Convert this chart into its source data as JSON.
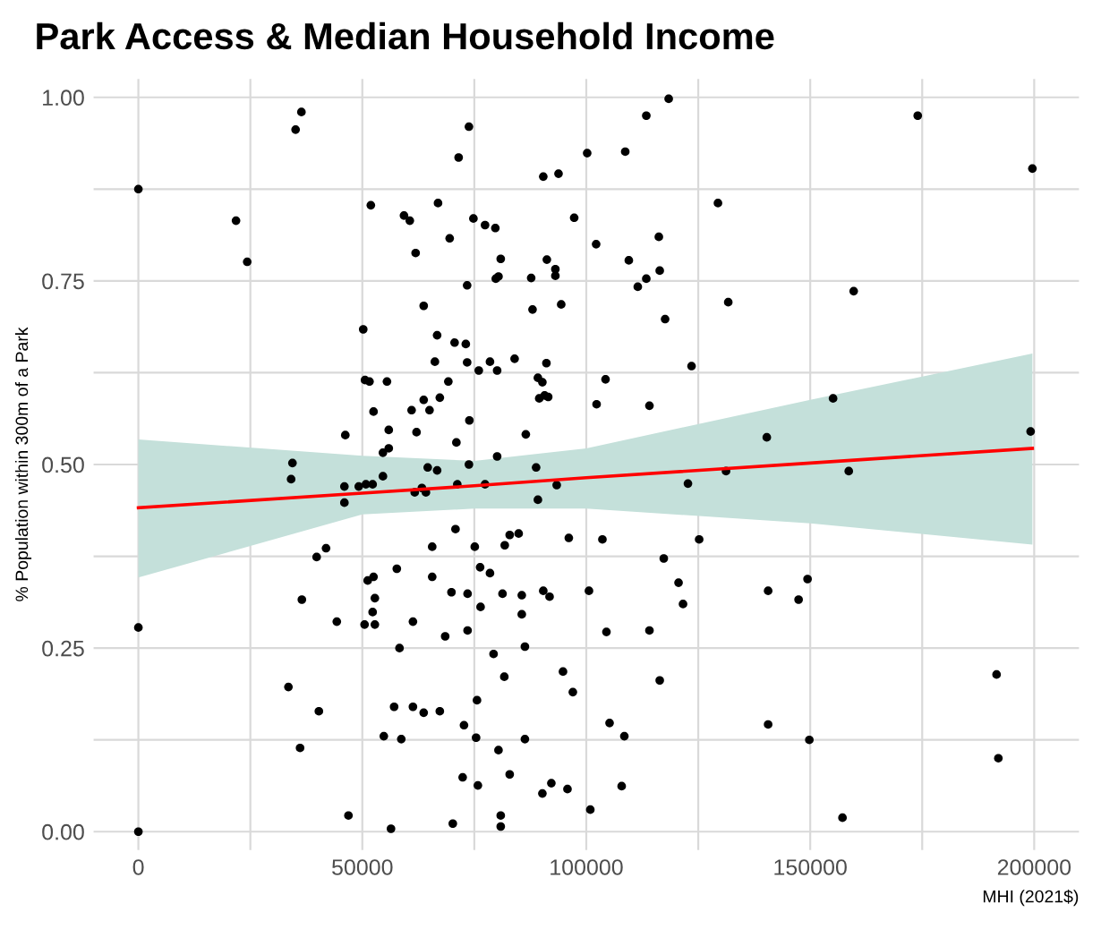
{
  "chart_data": {
    "type": "scatter",
    "title": "Park Access & Median Household Income",
    "xlabel": "MHI (2021$)",
    "ylabel": "% Population within 300m of a Park",
    "xlim": [
      -10000,
      210000
    ],
    "ylim": [
      -0.025,
      1.025
    ],
    "xticks": [
      0,
      {
        "value": 25000,
        "label": null
      },
      50000,
      {
        "value": 75000,
        "label": null
      },
      100000,
      {
        "value": 125000,
        "label": null
      },
      150000,
      {
        "value": 175000,
        "label": null
      },
      200000
    ],
    "yticks": [
      {
        "value": 0,
        "label": "0.00"
      },
      {
        "value": 0.125,
        "label": null
      },
      {
        "value": 0.25,
        "label": "0.25"
      },
      {
        "value": 0.375,
        "label": null
      },
      {
        "value": 0.5,
        "label": "0.50"
      },
      {
        "value": 0.625,
        "label": null
      },
      {
        "value": 0.75,
        "label": "0.75"
      },
      {
        "value": 0.875,
        "label": null
      },
      {
        "value": 1.0,
        "label": "1.00"
      }
    ],
    "grid": true,
    "series": [
      {
        "color": "#000000",
        "marker": "circle",
        "x": [
          36400,
          35100,
          0,
          21800,
          24300,
          46200,
          34400,
          34100,
          46000,
          41900,
          39800,
          36500,
          0,
          44300,
          33500,
          40300,
          36100,
          0,
          46900,
          73800,
          71500,
          51900,
          59300,
          60600,
          66900,
          69500,
          74800,
          77400,
          79700,
          61900,
          80900,
          73400,
          79800,
          80400,
          87700,
          88000,
          63700,
          50200,
          66700,
          70600,
          73100,
          66200,
          73400,
          78500,
          76000,
          80100,
          84000,
          50600,
          51600,
          55500,
          69200,
          52500,
          61000,
          63700,
          65000,
          67300,
          73900,
          55900,
          62100,
          86500,
          54600,
          55900,
          71000,
          80100,
          54600,
          50800,
          64600,
          66700,
          73800,
          46000,
          49200,
          52300,
          61700,
          63300,
          64200,
          71200,
          77400,
          70800,
          65600,
          75100,
          81800,
          82900,
          84900,
          57700,
          51200,
          52500,
          65600,
          76300,
          78500,
          52800,
          69900,
          73500,
          81300,
          85600,
          52300,
          76400,
          85600,
          50500,
          52800,
          61300,
          68500,
          73500,
          58300,
          86300,
          79300,
          81700,
          75600,
          57100,
          61300,
          63700,
          67300,
          72700,
          54800,
          58700,
          75400,
          86300,
          80400,
          72400,
          75800,
          82900,
          56400,
          70200,
          80900,
          80900,
          118400,
          113400,
          100200,
          108700,
          90400,
          93800,
          129400,
          97300,
          102200,
          116200,
          91200,
          109500,
          93100,
          93100,
          113400,
          116400,
          111500,
          131700,
          94400,
          117600,
          91100,
          123500,
          89200,
          90200,
          104300,
          89500,
          90700,
          91500,
          102300,
          114100,
          88800,
          89200,
          93400,
          122700,
          131200,
          96100,
          103600,
          125200,
          117300,
          120600,
          121600,
          90400,
          91800,
          100600,
          104500,
          114100,
          94800,
          97000,
          116400,
          105200,
          108500,
          90200,
          92200,
          95800,
          107900,
          100900,
          174000,
          199600,
          159700,
          155100,
          140300,
          199200,
          158600,
          140600,
          147400,
          149400,
          191600,
          140600,
          149800,
          192000,
          157200
        ],
        "values": [
          0.98,
          0.956,
          0.875,
          0.832,
          0.776,
          0.54,
          0.502,
          0.48,
          0.448,
          0.386,
          0.374,
          0.316,
          0.278,
          0.286,
          0.197,
          0.164,
          0.114,
          0.0,
          0.022,
          0.96,
          0.918,
          0.853,
          0.839,
          0.832,
          0.856,
          0.808,
          0.835,
          0.826,
          0.822,
          0.788,
          0.78,
          0.744,
          0.753,
          0.756,
          0.754,
          0.711,
          0.716,
          0.684,
          0.676,
          0.666,
          0.664,
          0.64,
          0.639,
          0.64,
          0.628,
          0.628,
          0.644,
          0.615,
          0.613,
          0.613,
          0.613,
          0.572,
          0.574,
          0.588,
          0.574,
          0.591,
          0.56,
          0.547,
          0.544,
          0.541,
          0.516,
          0.522,
          0.53,
          0.511,
          0.484,
          0.473,
          0.496,
          0.492,
          0.5,
          0.47,
          0.47,
          0.473,
          0.462,
          0.468,
          0.462,
          0.473,
          0.473,
          0.412,
          0.388,
          0.388,
          0.39,
          0.404,
          0.406,
          0.358,
          0.342,
          0.347,
          0.347,
          0.36,
          0.352,
          0.318,
          0.326,
          0.324,
          0.324,
          0.322,
          0.299,
          0.306,
          0.296,
          0.282,
          0.282,
          0.286,
          0.266,
          0.274,
          0.25,
          0.252,
          0.242,
          0.211,
          0.179,
          0.17,
          0.17,
          0.162,
          0.164,
          0.145,
          0.13,
          0.126,
          0.128,
          0.126,
          0.111,
          0.074,
          0.063,
          0.078,
          0.004,
          0.011,
          0.022,
          0.007,
          0.998,
          0.975,
          0.924,
          0.926,
          0.892,
          0.896,
          0.856,
          0.836,
          0.8,
          0.81,
          0.779,
          0.778,
          0.766,
          0.757,
          0.753,
          0.764,
          0.742,
          0.721,
          0.718,
          0.698,
          0.638,
          0.634,
          0.618,
          0.612,
          0.616,
          0.59,
          0.594,
          0.592,
          0.582,
          0.58,
          0.496,
          0.452,
          0.472,
          0.474,
          0.491,
          0.4,
          0.398,
          0.398,
          0.372,
          0.339,
          0.31,
          0.328,
          0.32,
          0.328,
          0.272,
          0.274,
          0.218,
          0.19,
          0.206,
          0.148,
          0.13,
          0.052,
          0.066,
          0.058,
          0.062,
          0.03,
          0.975,
          0.903,
          0.736,
          0.59,
          0.537,
          0.545,
          0.491,
          0.328,
          0.316,
          0.344,
          0.214,
          0.146,
          0.125,
          0.1,
          0.019
        ]
      },
      {
        "type": "line",
        "color": "#ff0000",
        "marker": "none",
        "x": [
          0,
          50000,
          75000,
          100000,
          150000,
          199600
        ],
        "values": [
          0.441,
          0.461,
          0.471,
          0.482,
          0.502,
          0.522
        ],
        "lower": [
          0.346,
          0.432,
          0.44,
          0.44,
          0.42,
          0.391
        ],
        "upper": [
          0.534,
          0.512,
          0.505,
          0.522,
          0.588,
          0.651
        ]
      }
    ]
  }
}
